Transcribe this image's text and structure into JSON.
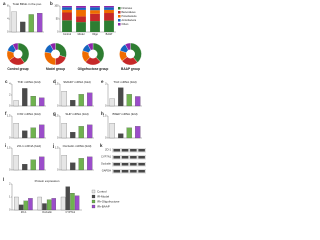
{
  "groups": [
    {
      "name": "Control",
      "color": "#e6e6e6"
    },
    {
      "name": "IR-Model",
      "color": "#4a4a4a"
    },
    {
      "name": "IR+Oligofructose",
      "color": "#6fb24f"
    },
    {
      "name": "IR+BAAP",
      "color": "#9b4dca"
    }
  ],
  "panel_a": {
    "label": "a",
    "title": "Total Bifido in the poo",
    "values": [
      6.2,
      3.1,
      5.4,
      5.8
    ],
    "ylim": [
      0,
      8
    ],
    "yticks": [
      0,
      4,
      8
    ]
  },
  "panel_b": {
    "label": "b",
    "categories": [
      "Control",
      "Model",
      "Oligo",
      "BAAP"
    ],
    "series": [
      {
        "name": "Firmicutes",
        "color": "#2e7d32",
        "values": [
          45,
          38,
          42,
          44
        ]
      },
      {
        "name": "Bacteroidetes",
        "color": "#c62828",
        "values": [
          30,
          22,
          28,
          29
        ]
      },
      {
        "name": "Proteobacteria",
        "color": "#ef6c00",
        "values": [
          10,
          25,
          14,
          12
        ]
      },
      {
        "name": "Actinobacteria",
        "color": "#1565c0",
        "values": [
          10,
          8,
          11,
          10
        ]
      },
      {
        "name": "Others",
        "color": "#8e24aa",
        "values": [
          5,
          7,
          5,
          5
        ]
      }
    ],
    "ylim": [
      0,
      100
    ],
    "yticks": [
      0,
      50,
      100
    ]
  },
  "pies": [
    {
      "label": "Control group",
      "values": [
        40,
        25,
        15,
        12,
        8
      ]
    },
    {
      "label": "Model group",
      "values": [
        30,
        20,
        28,
        14,
        8
      ]
    },
    {
      "label": "Oligofructose group",
      "values": [
        38,
        24,
        18,
        12,
        8
      ]
    },
    {
      "label": "BAAP group",
      "values": [
        39,
        25,
        16,
        12,
        8
      ]
    }
  ],
  "pie_colors": [
    "#2e7d32",
    "#c62828",
    "#ef6c00",
    "#1565c0",
    "#8e24aa"
  ],
  "small": [
    {
      "label": "c",
      "title": "TNF mRNA (fold)",
      "values": [
        1.0,
        3.2,
        1.8,
        1.5
      ],
      "ylim": [
        0,
        4
      ],
      "yticks": [
        0,
        2,
        4
      ]
    },
    {
      "label": "d",
      "title": "SMAD7 mRNA (fold)",
      "values": [
        1.0,
        0.4,
        0.8,
        0.9
      ],
      "ylim": [
        0,
        1.5
      ],
      "yticks": [
        0,
        1.5
      ]
    },
    {
      "label": "e",
      "title": "TGF mRNA (fold)",
      "values": [
        1.0,
        2.5,
        1.6,
        1.3
      ],
      "ylim": [
        0,
        3
      ],
      "yticks": [
        0,
        3
      ]
    },
    {
      "label": "f",
      "title": "FXR mRNA (fold)",
      "values": [
        1.0,
        0.5,
        0.7,
        0.9
      ],
      "ylim": [
        0,
        1.5
      ],
      "yticks": [
        0,
        1.5
      ]
    },
    {
      "label": "g",
      "title": "SHP mRNA (fold)",
      "values": [
        1.0,
        0.4,
        0.8,
        0.9
      ],
      "ylim": [
        0,
        1.5
      ],
      "yticks": [
        0,
        1.5
      ]
    },
    {
      "label": "h",
      "title": "BSEP mRNA (fold)",
      "values": [
        1.0,
        0.3,
        0.7,
        0.8
      ],
      "ylim": [
        0,
        1.5
      ],
      "yticks": [
        0,
        1.5
      ]
    },
    {
      "label": "i",
      "title": "ZO-1 mRNA (fold)",
      "values": [
        1.0,
        0.4,
        0.7,
        0.9
      ],
      "ylim": [
        0,
        1.5
      ],
      "yticks": [
        0,
        1.5
      ]
    },
    {
      "label": "j",
      "title": "Occludin mRNA (fold)",
      "values": [
        1.0,
        0.5,
        0.8,
        0.9
      ],
      "ylim": [
        0,
        1.5
      ],
      "yticks": [
        0,
        1.5
      ]
    }
  ],
  "blot": {
    "label": "k",
    "rows": [
      "ZO-1",
      "CYP7A1",
      "Occludin",
      "GAPDH"
    ]
  },
  "protein": {
    "label": "l",
    "title": "Protein expression",
    "categories": [
      "ZO-1",
      "Occludin",
      "CYP7A1"
    ],
    "values": [
      [
        1.0,
        0.4,
        0.7,
        0.9
      ],
      [
        1.0,
        0.5,
        0.8,
        0.9
      ],
      [
        1.0,
        1.8,
        1.3,
        1.1
      ]
    ],
    "ylim": [
      0,
      2
    ],
    "yticks": [
      0,
      1,
      2
    ]
  }
}
